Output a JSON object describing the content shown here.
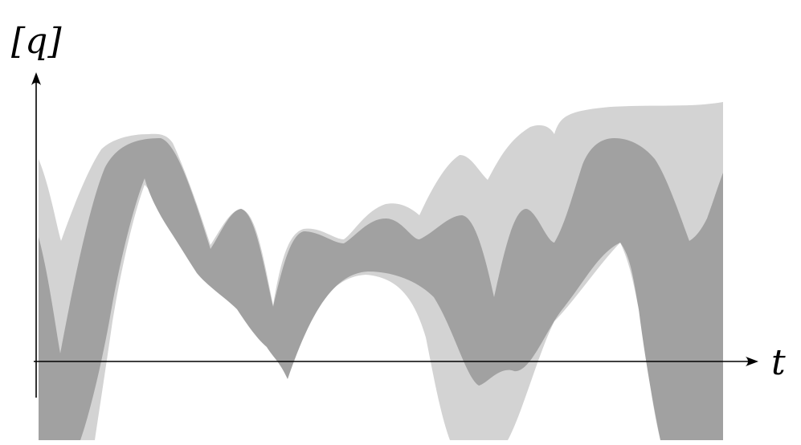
{
  "labels": {
    "y_axis": "[q]",
    "x_axis": "t"
  },
  "colors": {
    "outer_band": "#d3d3d3",
    "inner_band": "#a1a1a1",
    "axis": "#000000",
    "background": "#ffffff"
  }
}
